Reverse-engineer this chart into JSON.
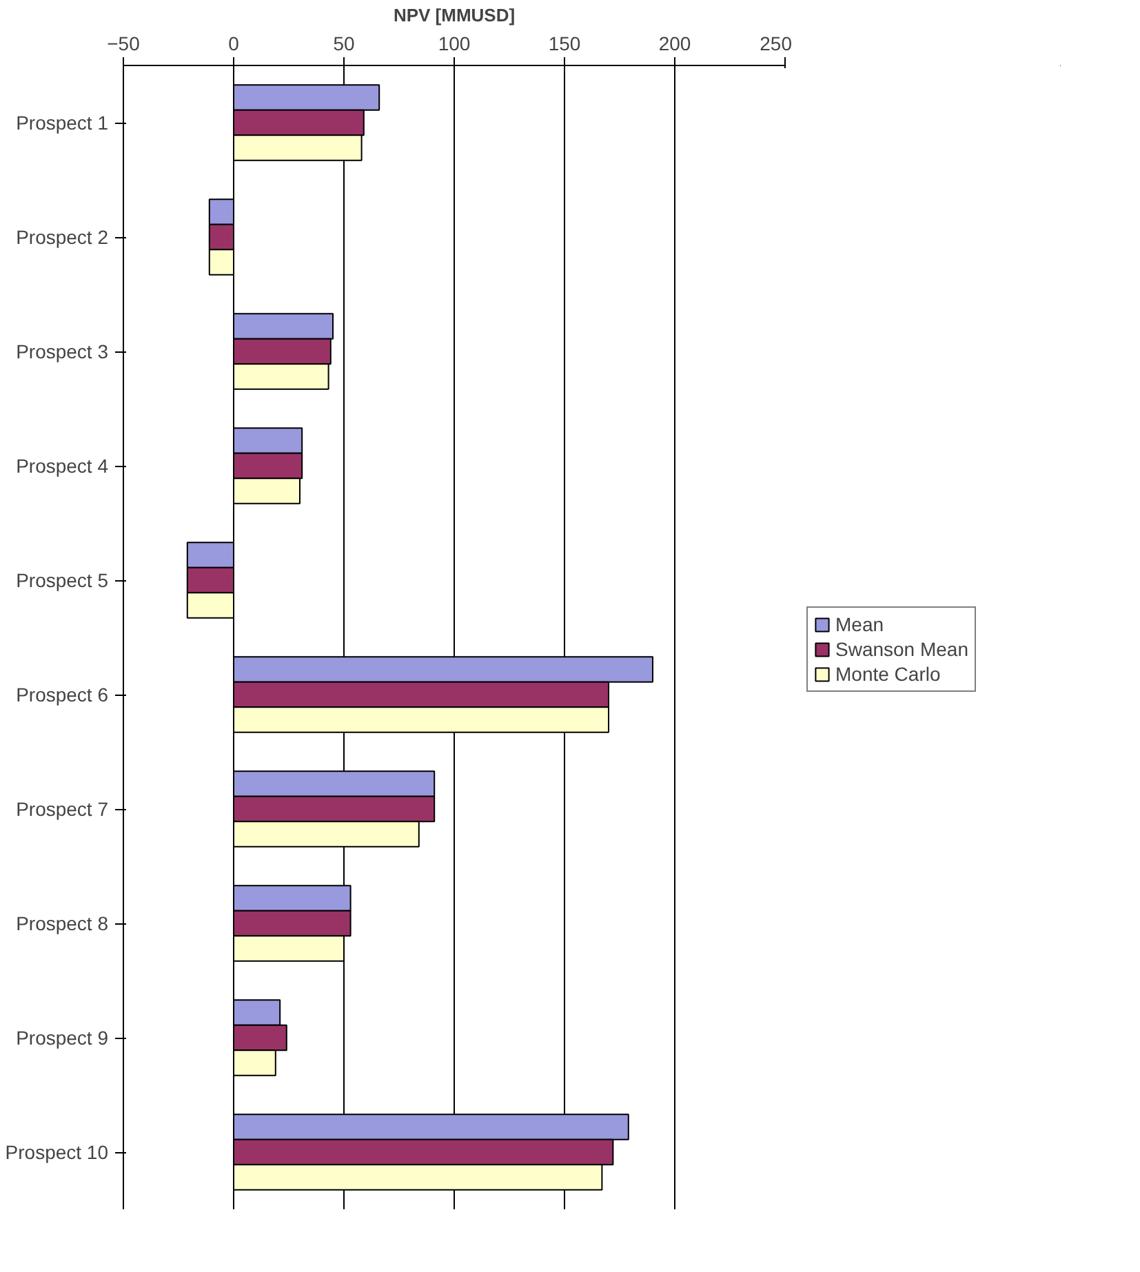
{
  "chart_data": {
    "type": "bar",
    "orientation": "horizontal",
    "xlabel": "NPV [MMUSD]",
    "categories": [
      "Prospect 1",
      "Prospect 2",
      "Prospect 3",
      "Prospect 4",
      "Prospect 5",
      "Prospect 6",
      "Prospect 7",
      "Prospect 8",
      "Prospect 9",
      "Prospect 10"
    ],
    "series": [
      {
        "name": "Mean",
        "color": "#9999dd",
        "values": [
          66,
          -11,
          45,
          31,
          -21,
          190,
          91,
          53,
          21,
          179
        ]
      },
      {
        "name": "Swanson Mean",
        "color": "#993366",
        "values": [
          59,
          -11,
          44,
          31,
          -21,
          170,
          91,
          53,
          24,
          172
        ]
      },
      {
        "name": "Monte Carlo",
        "color": "#ffffcc",
        "values": [
          58,
          -11,
          43,
          30,
          -21,
          170,
          84,
          50,
          19,
          167
        ]
      }
    ],
    "xlim": [
      -50,
      250
    ],
    "xticks": [
      -50,
      0,
      50,
      100,
      150,
      200,
      250
    ],
    "grid": "x",
    "legend": "right"
  }
}
